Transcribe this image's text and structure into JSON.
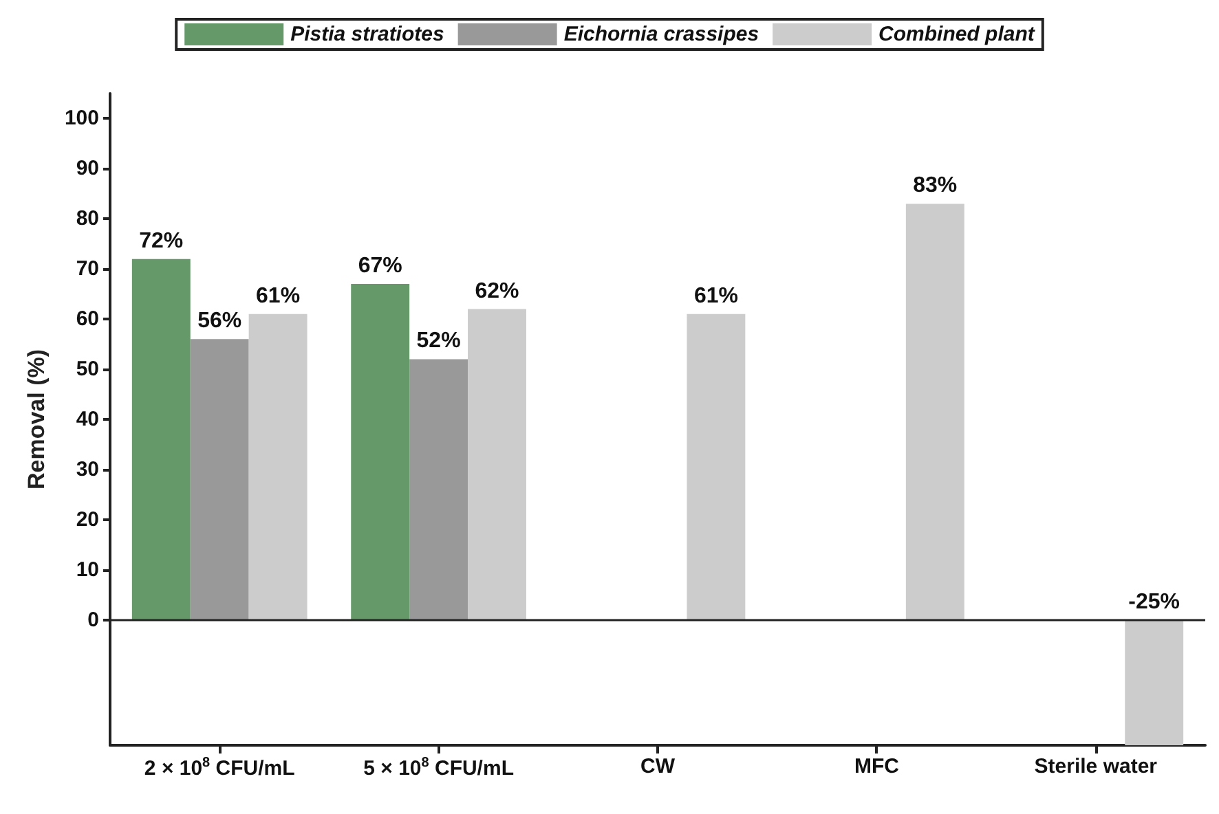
{
  "chart_data": {
    "type": "bar",
    "ylabel": "Removal (%)",
    "categories": [
      "2 × 10$^{8}$ CFU/mL",
      "5 × 10$^{8}$ CFU/mL",
      "CW",
      "MFC",
      "Sterile water"
    ],
    "series": [
      {
        "name": "Pistia stratiotes",
        "color": "#66996a",
        "values": [
          72,
          67,
          null,
          null,
          null
        ],
        "value_labels": [
          "72%",
          "67%",
          null,
          null,
          null
        ]
      },
      {
        "name": "Eichornia crassipes",
        "color": "#999999",
        "values": [
          56,
          52,
          null,
          null,
          null
        ],
        "value_labels": [
          "56%",
          "52%",
          null,
          null,
          null
        ]
      },
      {
        "name": "Combined plant",
        "color": "#cccccc",
        "values": [
          61,
          62,
          61,
          83,
          -25
        ],
        "value_labels": [
          "61%",
          "62%",
          "61%",
          "83%",
          "-25%"
        ]
      }
    ],
    "ylim": [
      -25,
      105
    ],
    "yticks": [
      0,
      10,
      20,
      30,
      40,
      50,
      60,
      70,
      80,
      90,
      100
    ],
    "ref_lines": [
      {
        "axis": "y",
        "value": 0,
        "color": "#222222"
      }
    ],
    "grid": false,
    "legend": "top"
  }
}
